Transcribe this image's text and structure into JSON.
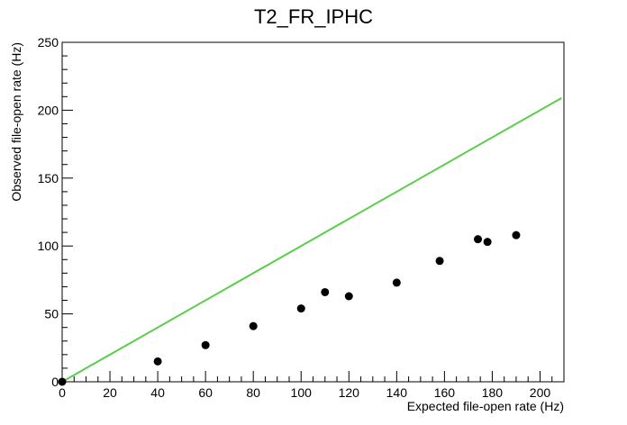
{
  "chart_data": {
    "type": "scatter",
    "title": "T2_FR_IPHC",
    "xlabel": "Expected file-open rate (Hz)",
    "ylabel": "Observed file-open rate (Hz)",
    "xlim": [
      0,
      210
    ],
    "ylim": [
      0,
      250
    ],
    "x_ticks": [
      0,
      20,
      40,
      60,
      80,
      100,
      120,
      140,
      160,
      180,
      200
    ],
    "y_ticks": [
      0,
      50,
      100,
      150,
      200,
      250
    ],
    "grid": false,
    "series": [
      {
        "type": "scatter",
        "color": "#000000",
        "points": [
          {
            "x": 0,
            "y": 0
          },
          {
            "x": 40,
            "y": 15
          },
          {
            "x": 60,
            "y": 27
          },
          {
            "x": 80,
            "y": 41
          },
          {
            "x": 100,
            "y": 54
          },
          {
            "x": 110,
            "y": 66
          },
          {
            "x": 120,
            "y": 63
          },
          {
            "x": 140,
            "y": 73
          },
          {
            "x": 158,
            "y": 89
          },
          {
            "x": 174,
            "y": 105
          },
          {
            "x": 178,
            "y": 103
          },
          {
            "x": 190,
            "y": 108
          }
        ]
      },
      {
        "type": "line",
        "color": "#5ccc4c",
        "points": [
          {
            "x": 0,
            "y": 0
          },
          {
            "x": 209,
            "y": 209
          }
        ]
      }
    ]
  }
}
